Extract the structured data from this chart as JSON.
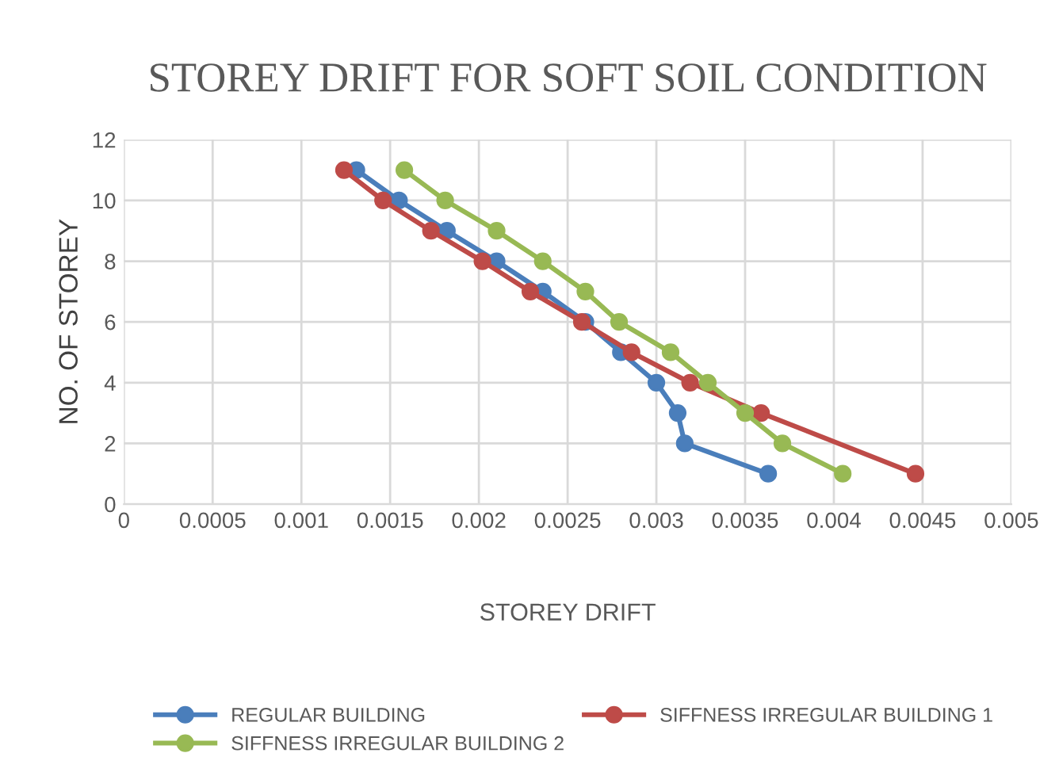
{
  "chart_data": {
    "type": "line",
    "title": "STOREY DRIFT FOR SOFT SOIL CONDITION",
    "xlabel": "STOREY DRIFT",
    "ylabel": "NO. OF STOREY",
    "xlim": [
      0,
      0.005
    ],
    "xticks": [
      0,
      0.0005,
      0.001,
      0.0015,
      0.002,
      0.0025,
      0.003,
      0.0035,
      0.004,
      0.0045,
      0.005
    ],
    "ylim": [
      0,
      12
    ],
    "yticks": [
      0,
      2,
      4,
      6,
      8,
      10,
      12
    ],
    "grid": true,
    "legend": "bottom",
    "marker": "circle",
    "line_style": "solid",
    "series": [
      {
        "name": "REGULAR BUILDING",
        "color": "#4a7ebb",
        "x": [
          0.00131,
          0.00155,
          0.00182,
          0.0021,
          0.00236,
          0.0026,
          0.0028,
          0.003,
          0.00312,
          0.00316,
          0.00363
        ],
        "values": [
          11,
          10,
          9,
          8,
          7,
          6,
          5,
          4,
          3,
          2,
          1
        ]
      },
      {
        "name": "SIFFNESS IRREGULAR BUILDING 1",
        "color": "#be4b48",
        "x": [
          0.00124,
          0.00146,
          0.00173,
          0.00202,
          0.00229,
          0.00258,
          0.00286,
          0.00319,
          0.00359,
          0.00446
        ],
        "values": [
          11,
          10,
          9,
          8,
          7,
          6,
          5,
          4,
          3,
          1
        ]
      },
      {
        "name": "SIFFNESS IRREGULAR BUILDING 2",
        "color": "#98b954",
        "x": [
          0.00158,
          0.00181,
          0.0021,
          0.00236,
          0.0026,
          0.00279,
          0.00308,
          0.00329,
          0.0035,
          0.00371,
          0.00405
        ],
        "values": [
          11,
          10,
          9,
          8,
          7,
          6,
          5,
          4,
          3,
          2,
          1
        ]
      }
    ]
  }
}
